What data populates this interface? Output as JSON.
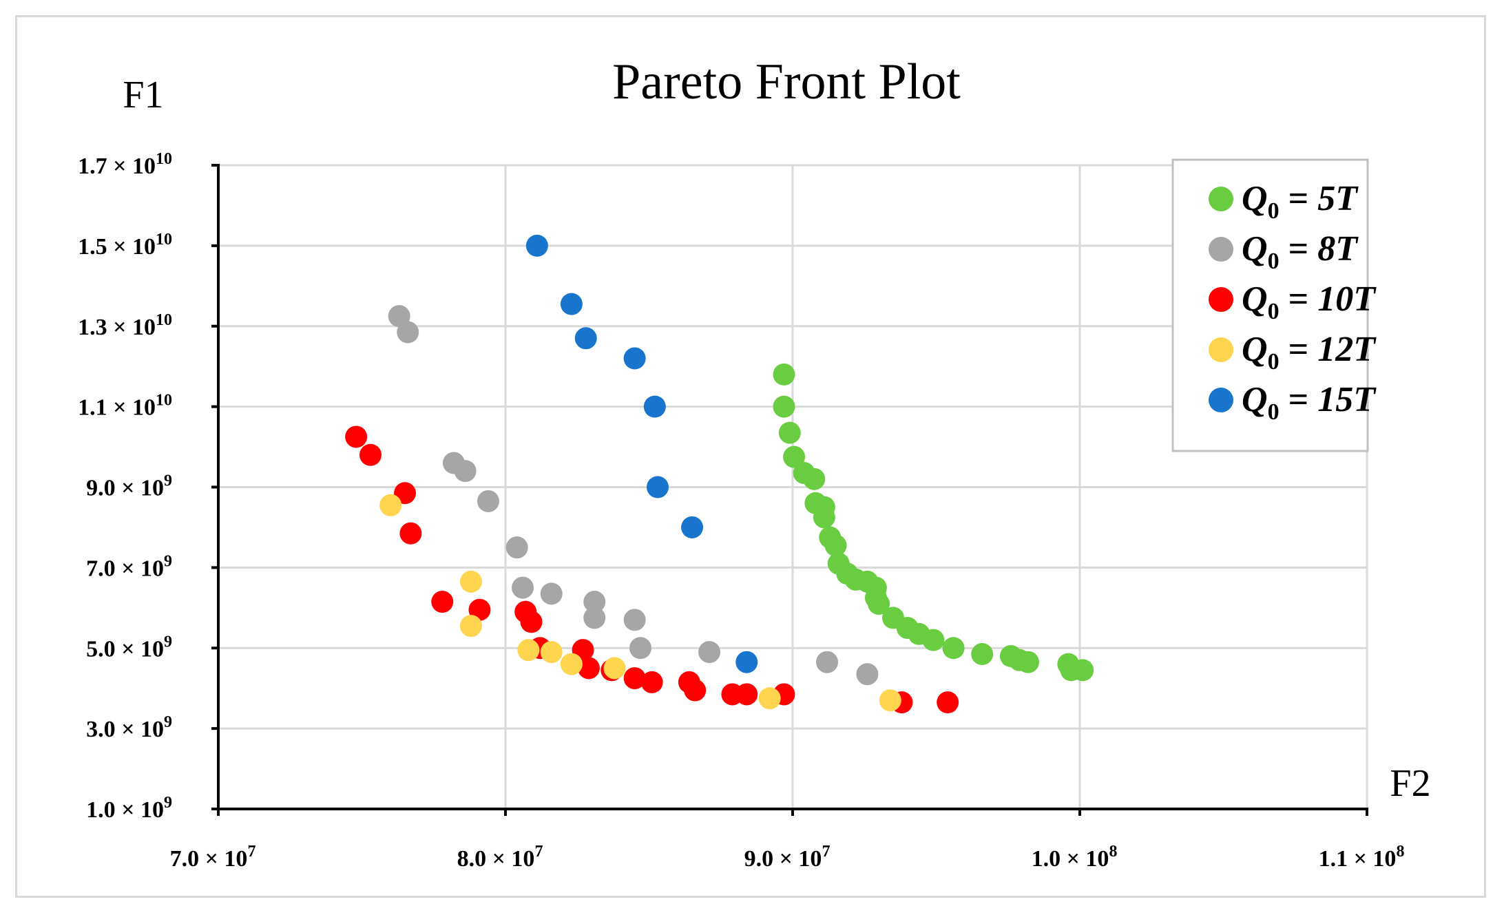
{
  "chart_data": {
    "type": "scatter",
    "title": "Pareto Front Plot",
    "xlabel": "F2",
    "ylabel": "F1",
    "xlim": [
      70000000,
      110000000
    ],
    "ylim": [
      1000000000,
      17000000000
    ],
    "x_ticks": [
      {
        "value": 70000000,
        "mantissa": "7.0",
        "exp": "7"
      },
      {
        "value": 80000000,
        "mantissa": "8.0",
        "exp": "7"
      },
      {
        "value": 90000000,
        "mantissa": "9.0",
        "exp": "7"
      },
      {
        "value": 100000000,
        "mantissa": "1.0",
        "exp": "8"
      },
      {
        "value": 110000000,
        "mantissa": "1.1",
        "exp": "8"
      }
    ],
    "y_ticks": [
      {
        "value": 1000000000,
        "mantissa": "1.0",
        "exp": "9"
      },
      {
        "value": 3000000000,
        "mantissa": "3.0",
        "exp": "9"
      },
      {
        "value": 5000000000,
        "mantissa": "5.0",
        "exp": "9"
      },
      {
        "value": 7000000000,
        "mantissa": "7.0",
        "exp": "9"
      },
      {
        "value": 9000000000,
        "mantissa": "9.0",
        "exp": "9"
      },
      {
        "value": 11000000000,
        "mantissa": "1.1",
        "exp": "10"
      },
      {
        "value": 13000000000,
        "mantissa": "1.3",
        "exp": "10"
      },
      {
        "value": 15000000000,
        "mantissa": "1.5",
        "exp": "10"
      },
      {
        "value": 17000000000,
        "mantissa": "1.7",
        "exp": "10"
      }
    ],
    "grid": true,
    "legend_position": "top-right",
    "series": [
      {
        "name": "Q0 = 5T",
        "label_value": "5T",
        "color": "#6acd41",
        "points": [
          [
            89.7,
            11.8
          ],
          [
            89.7,
            11.0
          ],
          [
            89.9,
            10.35
          ],
          [
            90.05,
            9.75
          ],
          [
            90.4,
            9.35
          ],
          [
            90.75,
            9.2
          ],
          [
            90.8,
            8.6
          ],
          [
            91.1,
            8.5
          ],
          [
            91.1,
            8.25
          ],
          [
            91.3,
            7.75
          ],
          [
            91.5,
            7.55
          ],
          [
            91.6,
            7.1
          ],
          [
            91.9,
            6.85
          ],
          [
            92.2,
            6.7
          ],
          [
            92.6,
            6.65
          ],
          [
            92.9,
            6.5
          ],
          [
            92.9,
            6.25
          ],
          [
            93.0,
            6.1
          ],
          [
            93.5,
            5.75
          ],
          [
            94.0,
            5.5
          ],
          [
            94.4,
            5.35
          ],
          [
            94.9,
            5.2
          ],
          [
            95.6,
            5.0
          ],
          [
            96.6,
            4.85
          ],
          [
            97.6,
            4.8
          ],
          [
            97.9,
            4.7
          ],
          [
            98.2,
            4.65
          ],
          [
            99.6,
            4.6
          ],
          [
            99.7,
            4.45
          ],
          [
            100.1,
            4.45
          ]
        ]
      },
      {
        "name": "Q0 = 8T",
        "label_value": "8T",
        "color": "#a6a6a6",
        "points": [
          [
            76.3,
            13.25
          ],
          [
            76.6,
            12.85
          ],
          [
            78.2,
            9.6
          ],
          [
            78.6,
            9.4
          ],
          [
            79.4,
            8.65
          ],
          [
            80.4,
            7.5
          ],
          [
            80.6,
            6.5
          ],
          [
            81.6,
            6.35
          ],
          [
            83.1,
            6.15
          ],
          [
            83.1,
            5.75
          ],
          [
            84.5,
            5.7
          ],
          [
            84.7,
            5.0
          ],
          [
            87.1,
            4.9
          ],
          [
            91.2,
            4.65
          ],
          [
            92.6,
            4.35
          ]
        ]
      },
      {
        "name": "Q0 = 10T",
        "label_value": "10T",
        "color": "#ff0000",
        "points": [
          [
            74.8,
            10.25
          ],
          [
            75.3,
            9.8
          ],
          [
            76.5,
            8.85
          ],
          [
            76.7,
            7.85
          ],
          [
            77.8,
            6.15
          ],
          [
            79.1,
            5.95
          ],
          [
            80.7,
            5.9
          ],
          [
            80.9,
            5.65
          ],
          [
            81.2,
            5.0
          ],
          [
            82.7,
            4.95
          ],
          [
            82.9,
            4.5
          ],
          [
            83.7,
            4.45
          ],
          [
            84.5,
            4.25
          ],
          [
            85.1,
            4.15
          ],
          [
            86.4,
            4.15
          ],
          [
            86.6,
            3.95
          ],
          [
            87.9,
            3.85
          ],
          [
            88.4,
            3.85
          ],
          [
            89.7,
            3.85
          ],
          [
            93.8,
            3.65
          ],
          [
            95.4,
            3.65
          ]
        ]
      },
      {
        "name": "Q0 = 12T",
        "label_value": "12T",
        "color": "#ffd44f",
        "points": [
          [
            76.0,
            8.55
          ],
          [
            78.8,
            6.65
          ],
          [
            78.8,
            5.55
          ],
          [
            80.8,
            4.95
          ],
          [
            81.6,
            4.9
          ],
          [
            82.3,
            4.6
          ],
          [
            83.8,
            4.5
          ],
          [
            89.2,
            3.75
          ],
          [
            93.4,
            3.7
          ]
        ]
      },
      {
        "name": "Q0 = 15T",
        "label_value": "15T",
        "color": "#1874cd",
        "points": [
          [
            81.1,
            15.0
          ],
          [
            82.3,
            13.55
          ],
          [
            82.8,
            12.7
          ],
          [
            84.5,
            12.2
          ],
          [
            85.2,
            11.0
          ],
          [
            85.3,
            9.0
          ],
          [
            86.5,
            8.0
          ],
          [
            88.4,
            4.65
          ]
        ]
      }
    ],
    "point_units": {
      "x": "x10^6",
      "y": "x10^9"
    }
  }
}
